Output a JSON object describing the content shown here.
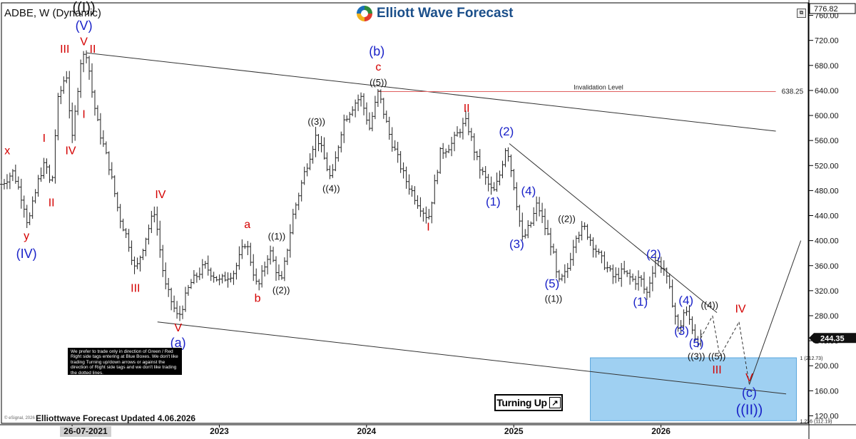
{
  "header": {
    "symbol_title": "ADBE, W (Dynamic)",
    "brand": "Elliott Wave Forecast",
    "updated": "Elliottwave Forecast Updated 4.06.2026",
    "esignal": "© eSignal, 2026"
  },
  "note_box": "We prefer to trade only in direction of Green / Red Right side tags entering at Blue Boxes. We don't like trading Turning up/down arrows or against the direction of Right side tags and we don't like trading the dotted lines.",
  "turning_up": "Turning Up",
  "chart_data": {
    "type": "candlestick",
    "title": "ADBE, W (Dynamic)",
    "yaxis": {
      "ticks": [
        120,
        160,
        200,
        240,
        280,
        320,
        360,
        400,
        440,
        480,
        520,
        560,
        600,
        640,
        680,
        720,
        760
      ],
      "tick_labels": [
        "120.00",
        "160.00",
        "200.00",
        "240.00",
        "280.00",
        "320.00",
        "360.00",
        "400.00",
        "440.00",
        "480.00",
        "520.00",
        "560.00",
        "600.00",
        "640.00",
        "680.00",
        "720.00",
        "760.00"
      ],
      "ylim": [
        108,
        780
      ]
    },
    "xaxis": {
      "ticks": [
        "2022",
        "2023",
        "2024",
        "2025",
        "2026"
      ],
      "highlight_label": "26-07-2021",
      "range": [
        2021.52,
        2027.0
      ]
    },
    "last_price": {
      "value": 244.35,
      "label": "244.35"
    },
    "top_price": {
      "value": 776.82,
      "label": "776.82"
    },
    "price_path": [
      [
        2021.52,
        490
      ],
      [
        2021.6,
        510
      ],
      [
        2021.67,
        460
      ],
      [
        2021.7,
        425
      ],
      [
        2021.78,
        505
      ],
      [
        2021.82,
        525
      ],
      [
        2021.86,
        480
      ],
      [
        2021.9,
        620
      ],
      [
        2021.96,
        670
      ],
      [
        2022.0,
        560
      ],
      [
        2022.06,
        690
      ],
      [
        2022.1,
        700
      ],
      [
        2022.14,
        630
      ],
      [
        2022.18,
        580
      ],
      [
        2022.25,
        520
      ],
      [
        2022.32,
        440
      ],
      [
        2022.38,
        400
      ],
      [
        2022.43,
        350
      ],
      [
        2022.52,
        420
      ],
      [
        2022.56,
        448
      ],
      [
        2022.63,
        330
      ],
      [
        2022.72,
        275
      ],
      [
        2022.8,
        330
      ],
      [
        2022.9,
        360
      ],
      [
        2023.0,
        335
      ],
      [
        2023.1,
        350
      ],
      [
        2023.18,
        400
      ],
      [
        2023.26,
        322
      ],
      [
        2023.34,
        385
      ],
      [
        2023.42,
        330
      ],
      [
        2023.5,
        440
      ],
      [
        2023.58,
        510
      ],
      [
        2023.66,
        570
      ],
      [
        2023.76,
        495
      ],
      [
        2023.84,
        590
      ],
      [
        2023.92,
        620
      ],
      [
        2023.96,
        630
      ],
      [
        2024.02,
        580
      ],
      [
        2024.08,
        638
      ],
      [
        2024.16,
        565
      ],
      [
        2024.26,
        500
      ],
      [
        2024.35,
        460
      ],
      [
        2024.42,
        435
      ],
      [
        2024.5,
        540
      ],
      [
        2024.58,
        555
      ],
      [
        2024.64,
        580
      ],
      [
        2024.68,
        590
      ],
      [
        2024.76,
        520
      ],
      [
        2024.86,
        475
      ],
      [
        2024.9,
        500
      ],
      [
        2024.95,
        555
      ],
      [
        2025.0,
        490
      ],
      [
        2025.06,
        400
      ],
      [
        2025.12,
        430
      ],
      [
        2025.16,
        460
      ],
      [
        2025.22,
        415
      ],
      [
        2025.26,
        390
      ],
      [
        2025.3,
        330
      ],
      [
        2025.36,
        350
      ],
      [
        2025.42,
        410
      ],
      [
        2025.48,
        420
      ],
      [
        2025.58,
        375
      ],
      [
        2025.68,
        340
      ],
      [
        2025.74,
        350
      ],
      [
        2025.82,
        335
      ],
      [
        2025.86,
        340
      ],
      [
        2025.9,
        312
      ],
      [
        2025.96,
        370
      ],
      [
        2026.02,
        355
      ],
      [
        2026.08,
        300
      ],
      [
        2026.12,
        252
      ],
      [
        2026.16,
        290
      ],
      [
        2026.2,
        270
      ],
      [
        2026.24,
        240
      ],
      [
        2026.27,
        244
      ]
    ],
    "projection": {
      "dashed": [
        [
          2026.27,
          244
        ],
        [
          2026.35,
          280
        ],
        [
          2026.4,
          215
        ],
        [
          2026.53,
          270
        ],
        [
          2026.6,
          170
        ]
      ],
      "solid_up": [
        [
          2026.6,
          170
        ],
        [
          2026.95,
          400
        ]
      ]
    },
    "trendlines": [
      [
        [
          2022.1,
          700
        ],
        [
          2026.78,
          575
        ]
      ],
      [
        [
          2022.58,
          270
        ],
        [
          2026.85,
          155
        ]
      ],
      [
        [
          2024.97,
          555
        ],
        [
          2026.38,
          285
        ]
      ]
    ],
    "invalidation": {
      "label": "Invalidation Level",
      "value_label": "638.25",
      "value": 638.25,
      "x_start": 2024.08,
      "x_end": 2026.78
    },
    "blue_box": {
      "x_start": 2025.52,
      "x_end": 2026.92,
      "top": 212.73,
      "bottom": 112.19,
      "top_label": "1 (212.73)",
      "bottom_label": "1.236 (112.19)"
    },
    "annotations": [
      {
        "text": "x",
        "x": 2021.56,
        "y": 538,
        "color": "#d40000"
      },
      {
        "text": "y",
        "x": 2021.69,
        "y": 402,
        "color": "#d40000"
      },
      {
        "text": "(IV)",
        "x": 2021.69,
        "y": 372,
        "color": "#1a22c8"
      },
      {
        "text": "I",
        "x": 2021.81,
        "y": 558,
        "color": "#d40000"
      },
      {
        "text": "II",
        "x": 2021.86,
        "y": 455,
        "color": "#d40000"
      },
      {
        "text": "III",
        "x": 2021.95,
        "y": 700,
        "color": "#d40000"
      },
      {
        "text": "IV",
        "x": 2021.99,
        "y": 538,
        "color": "#d40000"
      },
      {
        "text": "((I))",
        "x": 2022.08,
        "y": 765,
        "color": "#111111"
      },
      {
        "text": "(V)",
        "x": 2022.08,
        "y": 737,
        "color": "#1a22c8"
      },
      {
        "text": "V",
        "x": 2022.08,
        "y": 712,
        "color": "#d40000"
      },
      {
        "text": "II",
        "x": 2022.14,
        "y": 700,
        "color": "#d40000"
      },
      {
        "text": "I",
        "x": 2022.08,
        "y": 596,
        "color": "#d40000"
      },
      {
        "text": "IV",
        "x": 2022.6,
        "y": 468,
        "color": "#d40000"
      },
      {
        "text": "III",
        "x": 2022.43,
        "y": 318,
        "color": "#d40000"
      },
      {
        "text": "V",
        "x": 2022.72,
        "y": 255,
        "color": "#d40000"
      },
      {
        "text": "(a)",
        "x": 2022.72,
        "y": 230,
        "color": "#1a22c8"
      },
      {
        "text": "a",
        "x": 2023.19,
        "y": 420,
        "color": "#d40000"
      },
      {
        "text": "((1))",
        "x": 2023.39,
        "y": 402,
        "color": "#111111"
      },
      {
        "text": "b",
        "x": 2023.26,
        "y": 302,
        "color": "#d40000"
      },
      {
        "text": "((2))",
        "x": 2023.42,
        "y": 316,
        "color": "#111111"
      },
      {
        "text": "((3))",
        "x": 2023.66,
        "y": 585,
        "color": "#111111"
      },
      {
        "text": "((4))",
        "x": 2023.76,
        "y": 478,
        "color": "#111111"
      },
      {
        "text": "(b)",
        "x": 2024.07,
        "y": 696,
        "color": "#1a22c8"
      },
      {
        "text": "c",
        "x": 2024.08,
        "y": 672,
        "color": "#d40000"
      },
      {
        "text": "((5))",
        "x": 2024.08,
        "y": 648,
        "color": "#111111"
      },
      {
        "text": "II",
        "x": 2024.68,
        "y": 606,
        "color": "#d40000"
      },
      {
        "text": "I",
        "x": 2024.42,
        "y": 416,
        "color": "#d40000"
      },
      {
        "text": "(2)",
        "x": 2024.95,
        "y": 568,
        "color": "#1a22c8"
      },
      {
        "text": "(1)",
        "x": 2024.86,
        "y": 456,
        "color": "#1a22c8"
      },
      {
        "text": "(4)",
        "x": 2025.1,
        "y": 473,
        "color": "#1a22c8"
      },
      {
        "text": "(3)",
        "x": 2025.02,
        "y": 388,
        "color": "#1a22c8"
      },
      {
        "text": "((2))",
        "x": 2025.36,
        "y": 430,
        "color": "#111111"
      },
      {
        "text": "(5)",
        "x": 2025.26,
        "y": 325,
        "color": "#1a22c8"
      },
      {
        "text": "((1))",
        "x": 2025.27,
        "y": 302,
        "color": "#111111"
      },
      {
        "text": "(2)",
        "x": 2025.95,
        "y": 372,
        "color": "#1a22c8"
      },
      {
        "text": "(1)",
        "x": 2025.86,
        "y": 296,
        "color": "#1a22c8"
      },
      {
        "text": "(4)",
        "x": 2026.17,
        "y": 298,
        "color": "#1a22c8"
      },
      {
        "text": "((4))",
        "x": 2026.33,
        "y": 292,
        "color": "#111111"
      },
      {
        "text": "IV",
        "x": 2026.54,
        "y": 285,
        "color": "#d40000"
      },
      {
        "text": "(3)",
        "x": 2026.14,
        "y": 249,
        "color": "#1a22c8"
      },
      {
        "text": "(5)",
        "x": 2026.24,
        "y": 230,
        "color": "#1a22c8"
      },
      {
        "text": "((3))",
        "x": 2026.24,
        "y": 210,
        "color": "#111111"
      },
      {
        "text": "((5))",
        "x": 2026.38,
        "y": 210,
        "color": "#111111"
      },
      {
        "text": "III",
        "x": 2026.38,
        "y": 188,
        "color": "#d40000"
      },
      {
        "text": "V",
        "x": 2026.6,
        "y": 175,
        "color": "#d40000"
      },
      {
        "text": "(c)",
        "x": 2026.6,
        "y": 150,
        "color": "#1a22c8"
      },
      {
        "text": "((II))",
        "x": 2026.6,
        "y": 122,
        "color": "#1a22c8"
      }
    ]
  }
}
